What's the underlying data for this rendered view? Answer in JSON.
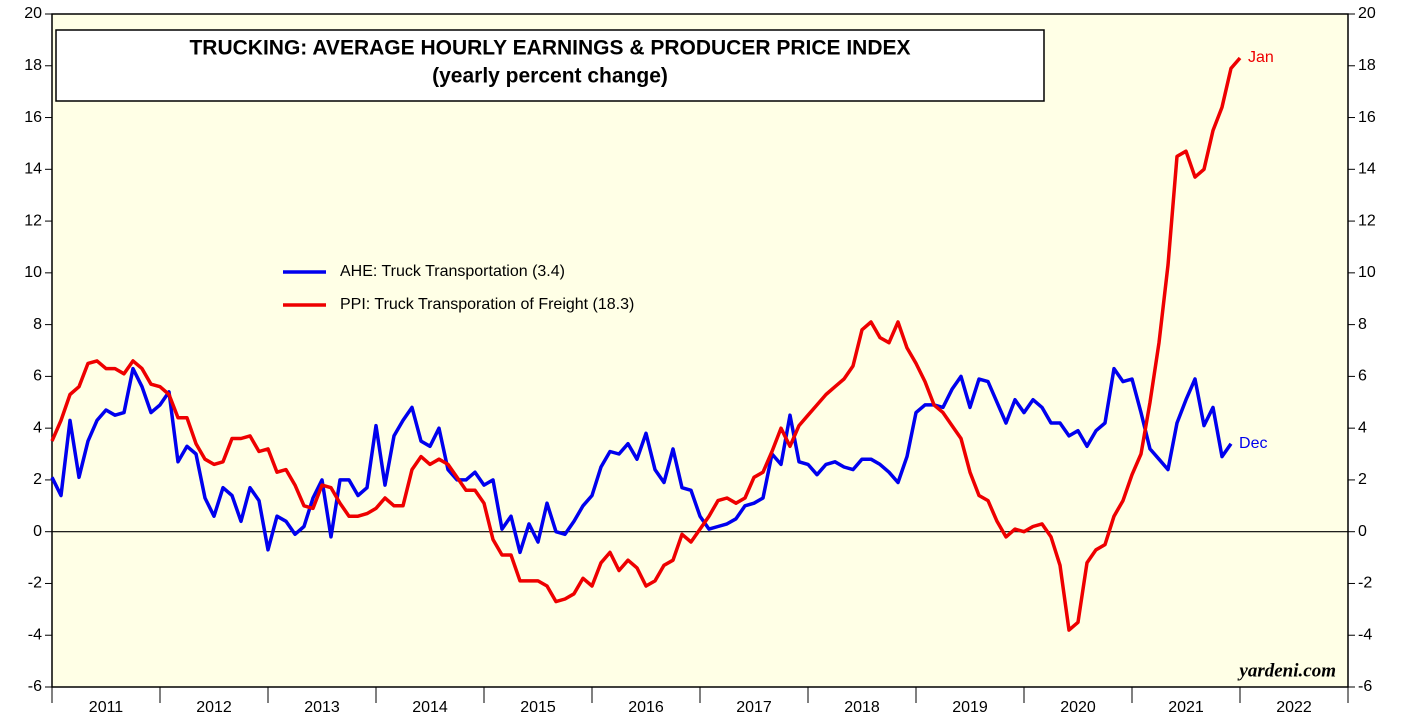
{
  "chart_data": {
    "type": "line",
    "title": "TRUCKING: AVERAGE HOURLY EARNINGS & PRODUCER PRICE INDEX",
    "subtitle": "(yearly percent change)",
    "watermark": "yardeni.com",
    "x": [
      2011,
      2011.083,
      2011.167,
      2011.25,
      2011.333,
      2011.417,
      2011.5,
      2011.583,
      2011.667,
      2011.75,
      2011.833,
      2011.917,
      2012,
      2012.083,
      2012.167,
      2012.25,
      2012.333,
      2012.417,
      2012.5,
      2012.583,
      2012.667,
      2012.75,
      2012.833,
      2012.917,
      2013,
      2013.083,
      2013.167,
      2013.25,
      2013.333,
      2013.417,
      2013.5,
      2013.583,
      2013.667,
      2013.75,
      2013.833,
      2013.917,
      2014,
      2014.083,
      2014.167,
      2014.25,
      2014.333,
      2014.417,
      2014.5,
      2014.583,
      2014.667,
      2014.75,
      2014.833,
      2014.917,
      2015,
      2015.083,
      2015.167,
      2015.25,
      2015.333,
      2015.417,
      2015.5,
      2015.583,
      2015.667,
      2015.75,
      2015.833,
      2015.917,
      2016,
      2016.083,
      2016.167,
      2016.25,
      2016.333,
      2016.417,
      2016.5,
      2016.583,
      2016.667,
      2016.75,
      2016.833,
      2016.917,
      2017,
      2017.083,
      2017.167,
      2017.25,
      2017.333,
      2017.417,
      2017.5,
      2017.583,
      2017.667,
      2017.75,
      2017.833,
      2017.917,
      2018,
      2018.083,
      2018.167,
      2018.25,
      2018.333,
      2018.417,
      2018.5,
      2018.583,
      2018.667,
      2018.75,
      2018.833,
      2018.917,
      2019,
      2019.083,
      2019.167,
      2019.25,
      2019.333,
      2019.417,
      2019.5,
      2019.583,
      2019.667,
      2019.75,
      2019.833,
      2019.917,
      2020,
      2020.083,
      2020.167,
      2020.25,
      2020.333,
      2020.417,
      2020.5,
      2020.583,
      2020.667,
      2020.75,
      2020.833,
      2020.917,
      2021,
      2021.083,
      2021.167,
      2021.25,
      2021.333,
      2021.417,
      2021.5,
      2021.583,
      2021.667,
      2021.75,
      2021.833,
      2021.917,
      2022
    ],
    "series": [
      {
        "name": "AHE: Truck Transportation (3.4)",
        "color": "#0000ee",
        "end_label": "Dec",
        "values": [
          2.1,
          1.4,
          4.3,
          2.1,
          3.5,
          4.3,
          4.7,
          4.5,
          4.6,
          6.3,
          5.6,
          4.6,
          4.9,
          5.4,
          2.7,
          3.3,
          3.0,
          1.3,
          0.6,
          1.7,
          1.4,
          0.4,
          1.7,
          1.2,
          -0.7,
          0.6,
          0.4,
          -0.1,
          0.2,
          1.3,
          2.0,
          -0.2,
          2.0,
          2.0,
          1.4,
          1.7,
          4.1,
          1.8,
          3.7,
          4.3,
          4.8,
          3.5,
          3.3,
          4.0,
          2.4,
          2.0,
          2.0,
          2.3,
          1.8,
          2.0,
          0.1,
          0.6,
          -0.8,
          0.3,
          -0.4,
          1.1,
          0.0,
          -0.1,
          0.4,
          1.0,
          1.4,
          2.5,
          3.1,
          3.0,
          3.4,
          2.8,
          3.8,
          2.4,
          1.9,
          3.2,
          1.7,
          1.6,
          0.6,
          0.1,
          0.2,
          0.3,
          0.5,
          1.0,
          1.1,
          1.3,
          3.0,
          2.6,
          4.5,
          2.7,
          2.6,
          2.2,
          2.6,
          2.7,
          2.5,
          2.4,
          2.8,
          2.8,
          2.6,
          2.3,
          1.9,
          2.9,
          4.6,
          4.9,
          4.9,
          4.8,
          5.5,
          6.0,
          4.8,
          5.9,
          5.8,
          5.0,
          4.2,
          5.1,
          4.6,
          5.1,
          4.8,
          4.2,
          4.2,
          3.7,
          3.9,
          3.3,
          3.9,
          4.2,
          6.3,
          5.8,
          5.9,
          4.6,
          3.2,
          2.8,
          2.4,
          4.2,
          5.1,
          5.9,
          4.1,
          4.8,
          2.9,
          3.4,
          null
        ]
      },
      {
        "name": "PPI: Truck Transporation of Freight (18.3)",
        "color": "#ee0000",
        "end_label": "Jan",
        "values": [
          3.5,
          4.3,
          5.3,
          5.6,
          6.5,
          6.6,
          6.3,
          6.3,
          6.1,
          6.6,
          6.3,
          5.7,
          5.6,
          5.3,
          4.4,
          4.4,
          3.4,
          2.8,
          2.6,
          2.7,
          3.6,
          3.6,
          3.7,
          3.1,
          3.2,
          2.3,
          2.4,
          1.8,
          1.0,
          0.9,
          1.8,
          1.7,
          1.1,
          0.6,
          0.6,
          0.7,
          0.9,
          1.3,
          1.0,
          1.0,
          2.4,
          2.9,
          2.6,
          2.8,
          2.6,
          2.1,
          1.6,
          1.6,
          1.1,
          -0.3,
          -0.9,
          -0.9,
          -1.9,
          -1.9,
          -1.9,
          -2.1,
          -2.7,
          -2.6,
          -2.4,
          -1.8,
          -2.1,
          -1.2,
          -0.8,
          -1.5,
          -1.1,
          -1.4,
          -2.1,
          -1.9,
          -1.3,
          -1.1,
          -0.1,
          -0.4,
          0.1,
          0.6,
          1.2,
          1.3,
          1.1,
          1.3,
          2.1,
          2.3,
          3.1,
          4.0,
          3.3,
          4.1,
          4.5,
          4.9,
          5.3,
          5.6,
          5.9,
          6.4,
          7.8,
          8.1,
          7.5,
          7.3,
          8.1,
          7.1,
          6.5,
          5.8,
          4.9,
          4.6,
          4.1,
          3.6,
          2.3,
          1.4,
          1.2,
          0.4,
          -0.2,
          0.1,
          0.0,
          0.2,
          0.3,
          -0.2,
          -1.3,
          -3.8,
          -3.5,
          -1.2,
          -0.7,
          -0.5,
          0.6,
          1.2,
          2.2,
          3.0,
          5.0,
          7.3,
          10.3,
          14.5,
          14.7,
          13.7,
          14.0,
          15.5,
          16.4,
          17.9,
          18.3
        ]
      }
    ],
    "xlim": [
      2011,
      2023
    ],
    "year_labels": [
      2011,
      2012,
      2013,
      2014,
      2015,
      2016,
      2017,
      2018,
      2019,
      2020,
      2021,
      2022
    ],
    "ylim": [
      -6,
      20
    ],
    "yticks": [
      -6,
      -4,
      -2,
      0,
      2,
      4,
      6,
      8,
      10,
      12,
      14,
      16,
      18,
      20
    ],
    "reference_line": 0,
    "legend": "center-left"
  }
}
